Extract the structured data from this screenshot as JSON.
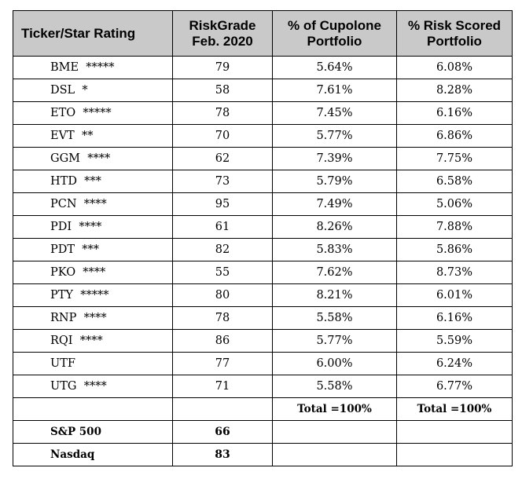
{
  "headers": {
    "col1": "Ticker/Star Rating",
    "col2_line1": "RiskGrade",
    "col2_line2": "Feb. 2020",
    "col3_line1": "% of Cupolone",
    "col3_line2": "Portfolio",
    "col4_line1": "% Risk Scored",
    "col4_line2": "Portfolio"
  },
  "rows": [
    {
      "ticker": "BME  *****",
      "grade": "79",
      "cupolone": "5.64%",
      "risk": "6.08%"
    },
    {
      "ticker": "DSL  *",
      "grade": "58",
      "cupolone": "7.61%",
      "risk": "8.28%"
    },
    {
      "ticker": "ETO  *****",
      "grade": "78",
      "cupolone": "7.45%",
      "risk": "6.16%"
    },
    {
      "ticker": "EVT  **",
      "grade": "70",
      "cupolone": "5.77%",
      "risk": "6.86%"
    },
    {
      "ticker": "GGM  ****",
      "grade": "62",
      "cupolone": "7.39%",
      "risk": "7.75%"
    },
    {
      "ticker": "HTD  ***",
      "grade": "73",
      "cupolone": "5.79%",
      "risk": "6.58%"
    },
    {
      "ticker": "PCN  ****",
      "grade": "95",
      "cupolone": "7.49%",
      "risk": "5.06%"
    },
    {
      "ticker": "PDI  ****",
      "grade": "61",
      "cupolone": "8.26%",
      "risk": "7.88%"
    },
    {
      "ticker": "PDT  ***",
      "grade": "82",
      "cupolone": "5.83%",
      "risk": "5.86%"
    },
    {
      "ticker": "PKO  ****",
      "grade": "55",
      "cupolone": "7.62%",
      "risk": "8.73%"
    },
    {
      "ticker": "PTY  *****",
      "grade": "80",
      "cupolone": "8.21%",
      "risk": "6.01%"
    },
    {
      "ticker": "RNP  ****",
      "grade": "78",
      "cupolone": "5.58%",
      "risk": "6.16%"
    },
    {
      "ticker": "RQI  ****",
      "grade": "86",
      "cupolone": "5.77%",
      "risk": "5.59%"
    },
    {
      "ticker": "UTF",
      "grade": "77",
      "cupolone": "6.00%",
      "risk": "6.24%"
    },
    {
      "ticker": "UTG  ****",
      "grade": "71",
      "cupolone": "5.58%",
      "risk": "6.77%"
    }
  ],
  "totals": {
    "cupolone": "Total =100%",
    "risk": "Total =100%"
  },
  "indices": [
    {
      "name": "S&P 500",
      "grade": "66"
    },
    {
      "name": "Nasdaq",
      "grade": "83"
    }
  ]
}
